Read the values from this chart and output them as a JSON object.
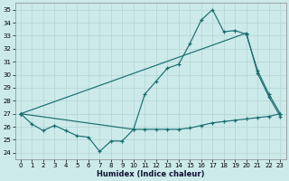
{
  "xlabel": "Humidex (Indice chaleur)",
  "bg_color": "#cceaea",
  "grid_color": "#b8d8d8",
  "line_color": "#1a6e6e",
  "xlim": [
    -0.5,
    23.5
  ],
  "ylim": [
    23.5,
    35.5
  ],
  "yticks": [
    24,
    25,
    26,
    27,
    28,
    29,
    30,
    31,
    32,
    33,
    34,
    35
  ],
  "xticks": [
    0,
    1,
    2,
    3,
    4,
    5,
    6,
    7,
    8,
    9,
    10,
    11,
    12,
    13,
    14,
    15,
    16,
    17,
    18,
    19,
    20,
    21,
    22,
    23
  ],
  "line1_x": [
    0,
    1,
    2,
    3,
    4,
    5,
    6,
    7,
    8,
    9,
    10,
    11,
    12,
    13,
    14,
    15,
    16,
    17,
    18,
    19,
    20,
    21,
    22,
    23
  ],
  "line1_y": [
    27.0,
    26.2,
    25.7,
    26.1,
    25.7,
    25.3,
    25.2,
    24.1,
    24.9,
    24.9,
    25.8,
    25.8,
    25.8,
    25.8,
    25.8,
    25.9,
    26.1,
    26.3,
    26.4,
    26.5,
    26.6,
    26.7,
    26.8,
    27.0
  ],
  "line2_x": [
    0,
    10,
    11,
    12,
    13,
    14,
    15,
    16,
    17,
    18,
    19,
    20,
    21,
    22,
    23
  ],
  "line2_y": [
    27.0,
    25.8,
    28.5,
    29.5,
    30.5,
    30.8,
    32.4,
    34.2,
    35.0,
    33.3,
    33.4,
    33.1,
    30.3,
    28.5,
    27.0
  ],
  "line3_x": [
    0,
    20,
    21,
    22,
    23
  ],
  "line3_y": [
    27.0,
    33.2,
    30.1,
    28.3,
    26.8
  ]
}
